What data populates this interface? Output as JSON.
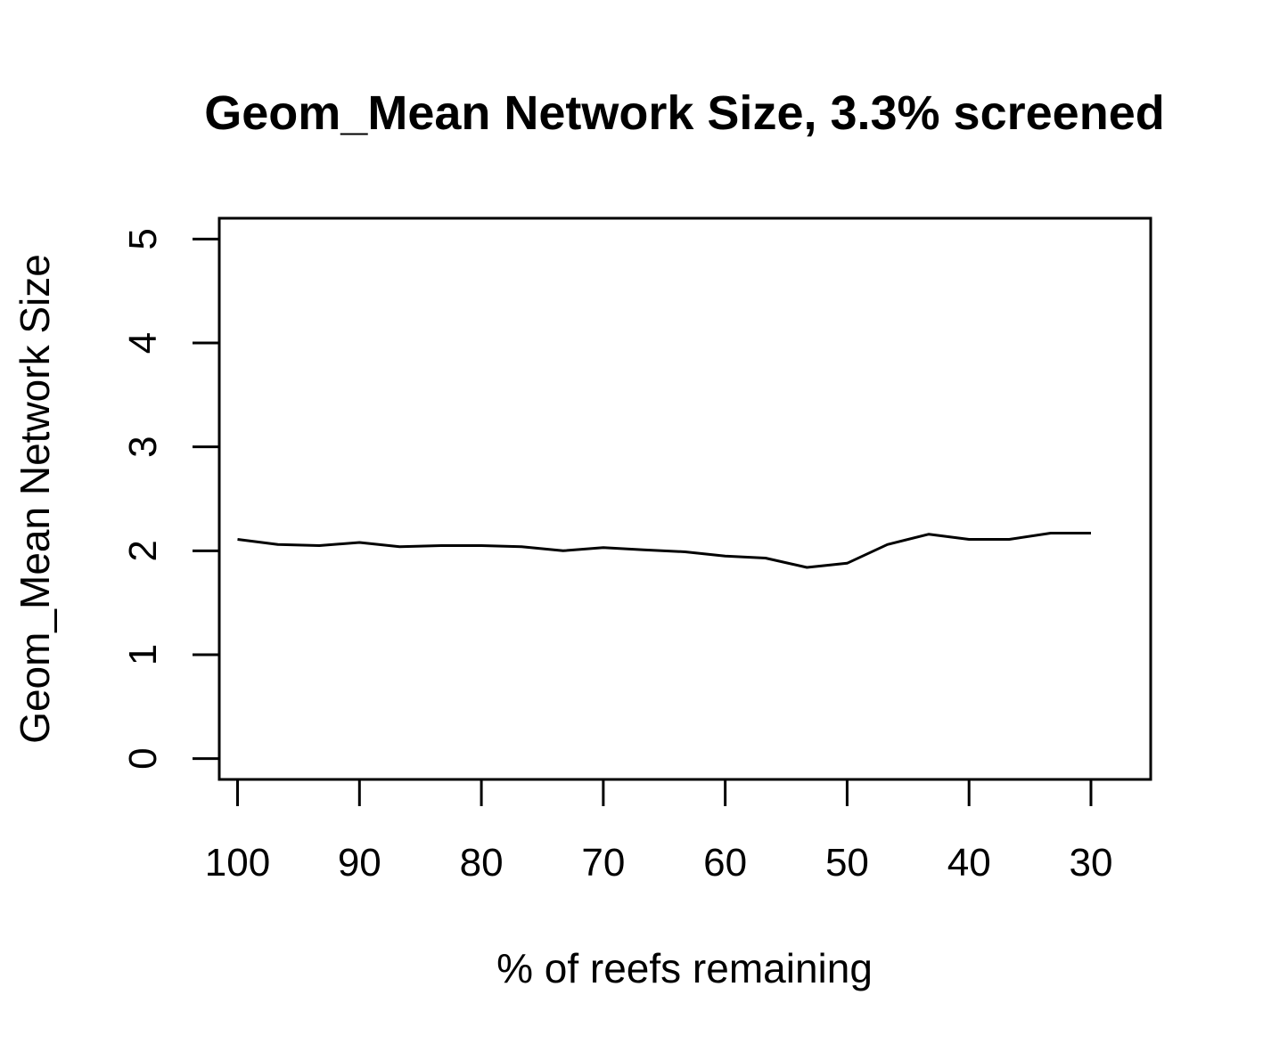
{
  "chart_data": {
    "type": "line",
    "title": "Geom_Mean Network Size, 3.3% screened",
    "xlabel": "% of reefs remaining",
    "ylabel": "Geom_Mean Network Size",
    "xlim": [
      101.5,
      25.1
    ],
    "ylim": [
      -0.2,
      5.2
    ],
    "x_reversed": true,
    "grid": false,
    "x_ticks": [
      100,
      90,
      80,
      70,
      60,
      50,
      40,
      30
    ],
    "y_ticks": [
      0,
      1,
      2,
      3,
      4,
      5
    ],
    "series": [
      {
        "color": "#000000",
        "x": [
          100,
          96.7,
          93.3,
          90,
          86.7,
          83.3,
          80,
          76.7,
          73.3,
          70,
          66.7,
          63.3,
          60,
          56.7,
          53.3,
          50,
          46.7,
          43.3,
          40,
          36.7,
          33.3,
          30
        ],
        "y": [
          2.11,
          2.06,
          2.05,
          2.08,
          2.04,
          2.05,
          2.05,
          2.04,
          2.0,
          2.03,
          2.01,
          1.99,
          1.95,
          1.93,
          1.84,
          1.88,
          2.06,
          2.16,
          2.11,
          2.11,
          2.17,
          2.17
        ]
      }
    ]
  }
}
